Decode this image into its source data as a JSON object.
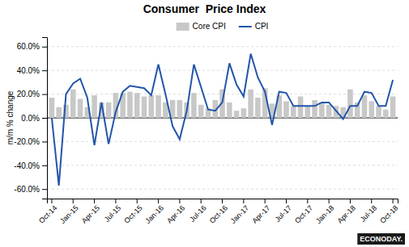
{
  "chart_data": {
    "type": "bar",
    "title": "Consumer  Price Index",
    "ylabel": "m/m % change",
    "categories": [
      "Oct-14",
      null,
      null,
      "Jan-15",
      null,
      null,
      "Apr-15",
      null,
      null,
      "Jul-15",
      null,
      null,
      "Oct-15",
      null,
      null,
      "Jan-16",
      null,
      null,
      "Apr-16",
      null,
      null,
      "Jul-16",
      null,
      null,
      "Oct-16",
      null,
      null,
      "Jan-17",
      null,
      null,
      "Apr-17",
      null,
      null,
      "Jul-17",
      null,
      null,
      "Oct-17",
      null,
      null,
      "Jan-18",
      null,
      null,
      "Apr-18",
      null,
      null,
      "Jul-18",
      null,
      null,
      "Oct-18"
    ],
    "series": [
      {
        "name": "Core CPI",
        "type": "bar",
        "color": "#c8c8c8",
        "values": [
          0.17,
          0.09,
          0.11,
          0.24,
          0.16,
          0.09,
          0.19,
          0.13,
          0.13,
          0.21,
          0.21,
          0.22,
          0.21,
          0.18,
          0.19,
          0.19,
          0.13,
          0.15,
          0.15,
          0.13,
          0.21,
          0.11,
          0.08,
          0.15,
          0.24,
          0.13,
          0.06,
          0.08,
          0.24,
          0.17,
          0.25,
          0.12,
          0.19,
          0.14,
          0.1,
          0.18,
          0.1,
          0.15,
          0.13,
          0.11,
          0.1,
          0.09,
          0.24,
          0.13,
          0.19,
          0.14,
          0.1,
          0.07,
          0.18
        ]
      },
      {
        "name": "CPI",
        "type": "line",
        "color": "#2255aa",
        "values": [
          0.0,
          -0.57,
          0.2,
          0.29,
          0.33,
          0.17,
          -0.23,
          0.13,
          -0.22,
          0.05,
          0.22,
          0.27,
          0.26,
          0.25,
          0.19,
          0.45,
          0.2,
          -0.07,
          -0.18,
          0.06,
          0.45,
          0.26,
          0.07,
          0.06,
          0.13,
          0.46,
          0.28,
          0.18,
          0.54,
          0.34,
          0.22,
          -0.06,
          0.22,
          0.21,
          0.1,
          0.1,
          0.1,
          0.1,
          0.13,
          0.13,
          0.06,
          -0.01,
          0.1,
          0.1,
          0.22,
          0.21,
          0.1,
          0.1,
          0.32
        ]
      }
    ],
    "ylim": [
      -0.68,
      0.68
    ],
    "yticks": [
      {
        "value": -0.6,
        "label": "-60.0%"
      },
      {
        "value": -0.4,
        "label": "-40.0%"
      },
      {
        "value": -0.2,
        "label": "-20.0%"
      },
      {
        "value": 0.0,
        "label": "0.0%"
      },
      {
        "value": 0.2,
        "label": "20.0%"
      },
      {
        "value": 0.4,
        "label": "40.0%"
      },
      {
        "value": 0.6,
        "label": "60.0%"
      }
    ],
    "grid": true,
    "legend": "top",
    "annotations": [
      "ECONODAY."
    ]
  }
}
